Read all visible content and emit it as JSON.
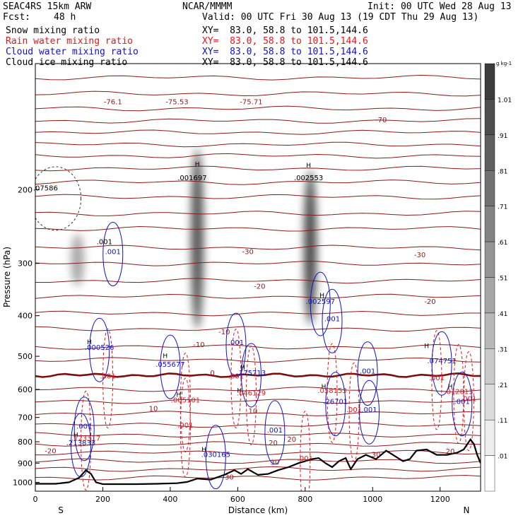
{
  "header": {
    "model": "SEAC4RS 15km ARW",
    "org": "NCAR/MMMM",
    "init": "Init: 00 UTC Wed 28 Aug 13",
    "fcst_label": "Fcst:",
    "fcst_value": "48 h",
    "valid": "Valid: 00 UTC Fri 30 Aug 13 (19 CDT Thu 29 Aug 13)"
  },
  "fields": [
    {
      "name": "Snow mixing ratio",
      "xy": "XY=  83.0, 58.8 to 101.5,144.6",
      "color": "#000000"
    },
    {
      "name": "Rain water mixing ratio",
      "xy": "XY=  83.0, 58.8 to 101.5,144.6",
      "color": "#e8141c"
    },
    {
      "name": "Cloud water mixing ratio",
      "xy": "XY=  83.0, 58.8 to 101.5,144.6",
      "color": "#1010d0"
    },
    {
      "name": "Cloud ice mixing ratio",
      "xy": "XY=  83.0, 58.8 to 101.5,144.6",
      "color": "#000000"
    }
  ],
  "chart_data": {
    "type": "heatmap",
    "subtype": "vertical cross-section",
    "xlabel": "Distance (km)",
    "ylabel": "Pressure (hPa)",
    "xlim": [
      0,
      1320
    ],
    "ylim": [
      1050,
      100
    ],
    "y_log": true,
    "x_ticks": [
      0,
      200,
      400,
      600,
      800,
      1000,
      1200
    ],
    "y_ticks": [
      200,
      300,
      400,
      500,
      600,
      700,
      800,
      900,
      1000
    ],
    "x_end_labels": [
      "S",
      "N"
    ],
    "colorbar": {
      "unit": "g kg-1",
      "labels": [
        "1.01",
        ".91",
        ".81",
        ".71",
        ".61",
        ".51",
        ".41",
        ".31",
        ".21",
        ".11",
        ".01"
      ]
    },
    "snow_plumes": [
      {
        "x": 125,
        "p_top": 255,
        "p_bot": 340,
        "strength": 0.45
      },
      {
        "x": 480,
        "p_top": 160,
        "p_bot": 430,
        "strength": 0.85
      },
      {
        "x": 815,
        "p_top": 180,
        "p_bot": 420,
        "strength": 0.9
      }
    ],
    "temperature_labels": [
      {
        "text": "-76.1",
        "x": 230,
        "p": 125
      },
      {
        "text": "-75.53",
        "x": 420,
        "p": 125
      },
      {
        "text": "-75.71",
        "x": 640,
        "p": 125
      },
      {
        "text": "-70",
        "x": 1025,
        "p": 138
      },
      {
        "text": "-30",
        "x": 630,
        "p": 285
      },
      {
        "text": "-30",
        "x": 1140,
        "p": 290
      },
      {
        "text": "-20",
        "x": 665,
        "p": 345
      },
      {
        "text": "-20",
        "x": 1170,
        "p": 375
      },
      {
        "text": "-10",
        "x": 560,
        "p": 443
      },
      {
        "text": "-10",
        "x": 485,
        "p": 475
      },
      {
        "text": "0",
        "x": 525,
        "p": 555
      },
      {
        "text": "10",
        "x": 350,
        "p": 675
      },
      {
        "text": "10",
        "x": 645,
        "p": 685
      },
      {
        "text": "20",
        "x": 760,
        "p": 800
      },
      {
        "text": "20",
        "x": 705,
        "p": 815
      },
      {
        "text": "-20",
        "x": 45,
        "p": 853
      },
      {
        "text": "20",
        "x": 1230,
        "p": 855
      },
      {
        "text": "30",
        "x": 1010,
        "p": 870
      },
      {
        "text": "30",
        "x": 710,
        "p": 908
      },
      {
        "text": "30",
        "x": 575,
        "p": 985
      }
    ],
    "temperature_levels_p": [
      108,
      118,
      128,
      137,
      146,
      156,
      166,
      178,
      192,
      208,
      228,
      248,
      275,
      300,
      330,
      360,
      395,
      430,
      475,
      510,
      600,
      640,
      685,
      730,
      770,
      810,
      850,
      890,
      930,
      975
    ],
    "freezing_level_p": 555,
    "terrain": [
      [
        0,
        1008
      ],
      [
        60,
        1008
      ],
      [
        100,
        1000
      ],
      [
        130,
        975
      ],
      [
        150,
        935
      ],
      [
        165,
        955
      ],
      [
        180,
        1000
      ],
      [
        200,
        1010
      ],
      [
        260,
        1010
      ],
      [
        300,
        1010
      ],
      [
        360,
        1008
      ],
      [
        420,
        1005
      ],
      [
        450,
        998
      ],
      [
        480,
        980
      ],
      [
        520,
        985
      ],
      [
        560,
        960
      ],
      [
        590,
        935
      ],
      [
        610,
        955
      ],
      [
        630,
        930
      ],
      [
        660,
        960
      ],
      [
        690,
        955
      ],
      [
        720,
        935
      ],
      [
        750,
        920
      ],
      [
        780,
        900
      ],
      [
        800,
        890
      ],
      [
        820,
        880
      ],
      [
        840,
        875
      ],
      [
        860,
        900
      ],
      [
        880,
        920
      ],
      [
        900,
        890
      ],
      [
        920,
        875
      ],
      [
        935,
        930
      ],
      [
        955,
        880
      ],
      [
        980,
        860
      ],
      [
        1010,
        880
      ],
      [
        1040,
        840
      ],
      [
        1070,
        870
      ],
      [
        1090,
        890
      ],
      [
        1110,
        880
      ],
      [
        1130,
        840
      ],
      [
        1160,
        835
      ],
      [
        1190,
        860
      ],
      [
        1220,
        860
      ],
      [
        1250,
        850
      ],
      [
        1270,
        835
      ],
      [
        1290,
        790
      ],
      [
        1300,
        810
      ],
      [
        1310,
        860
      ],
      [
        1320,
        900
      ]
    ],
    "rain_labels": [
      {
        "text": ".001",
        "x": 215,
        "p": 565
      },
      {
        "text": ".001",
        "x": 445,
        "p": 740
      },
      {
        "text": ".001",
        "x": 595,
        "p": 565
      },
      {
        "text": ".001",
        "x": 800,
        "p": 888
      },
      {
        "text": ".001",
        "x": 945,
        "p": 680
      },
      {
        "text": ".001",
        "x": 1190,
        "p": 570
      },
      {
        "text": ".001",
        "x": 1285,
        "p": 640
      },
      {
        "text": ".005101",
        "x": 445,
        "p": 645
      },
      {
        "text": ".046129",
        "x": 640,
        "p": 620
      },
      {
        "text": ".058153",
        "x": 880,
        "p": 612
      },
      {
        "text": ".123317",
        "x": 150,
        "p": 795
      },
      {
        "text": ".012813",
        "x": 1255,
        "p": 615
      }
    ],
    "cloud_water_labels": [
      {
        "text": ".001",
        "x": 230,
        "p": 285
      },
      {
        "text": ".002597",
        "x": 845,
        "p": 375
      },
      {
        "text": ".001",
        "x": 880,
        "p": 412
      },
      {
        "text": ".001",
        "x": 595,
        "p": 470
      },
      {
        "text": ".055677",
        "x": 400,
        "p": 530
      },
      {
        "text": ".175713",
        "x": 640,
        "p": 555
      },
      {
        "text": ".001",
        "x": 985,
        "p": 550
      },
      {
        "text": ".074751",
        "x": 1205,
        "p": 520
      },
      {
        "text": ".000526",
        "x": 190,
        "p": 483
      },
      {
        "text": ".26701",
        "x": 890,
        "p": 650
      },
      {
        "text": ".001",
        "x": 1265,
        "p": 650
      },
      {
        "text": ".001",
        "x": 990,
        "p": 680
      },
      {
        "text": ".001",
        "x": 145,
        "p": 745
      },
      {
        "text": ".001",
        "x": 710,
        "p": 760
      },
      {
        "text": ".213833",
        "x": 135,
        "p": 815
      },
      {
        "text": ".030165",
        "x": 535,
        "p": 870
      }
    ],
    "ice_labels": [
      {
        "text": ".07586",
        "x": 30,
        "p": 201
      },
      {
        "text": ".001697",
        "x": 465,
        "p": 190
      },
      {
        "text": ".002553",
        "x": 810,
        "p": 190
      },
      {
        "text": ".001",
        "x": 205,
        "p": 270
      }
    ],
    "max_markers": [
      {
        "x": 480,
        "p": 176
      },
      {
        "x": 810,
        "p": 177
      },
      {
        "x": 160,
        "p": 468
      },
      {
        "x": 385,
        "p": 505
      },
      {
        "x": 615,
        "p": 538
      },
      {
        "x": 850,
        "p": 362
      },
      {
        "x": 1160,
        "p": 478
      },
      {
        "x": 425,
        "p": 625
      },
      {
        "x": 605,
        "p": 610
      },
      {
        "x": 855,
        "p": 598
      },
      {
        "x": 120,
        "p": 780
      },
      {
        "x": 500,
        "p": 845
      },
      {
        "x": 1230,
        "p": 598
      }
    ]
  }
}
